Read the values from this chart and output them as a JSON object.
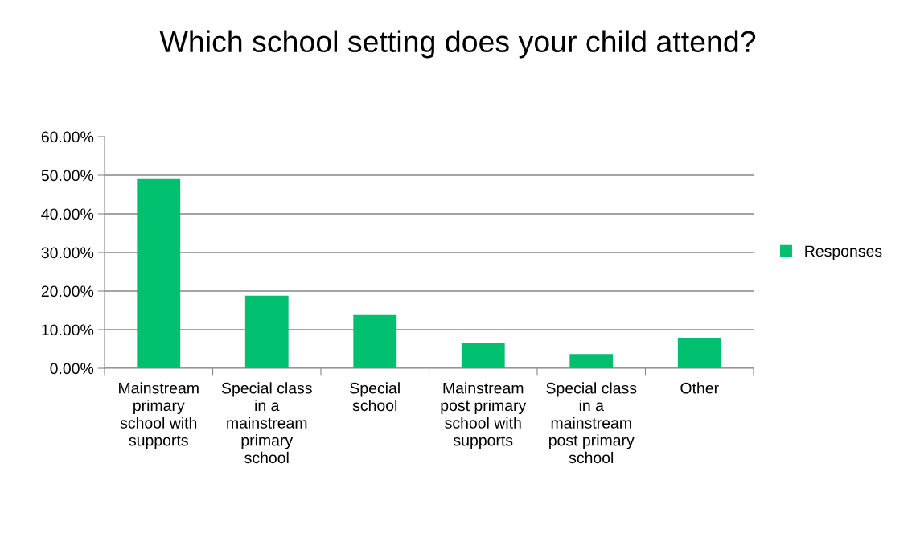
{
  "chart_data": {
    "type": "bar",
    "title": "Which school setting does your child attend?",
    "categories": [
      "Mainstream primary school with supports",
      "Special class in a mainstream primary school",
      "Special school",
      "Mainstream post primary school with supports",
      "Special class in a mainstream post primary school",
      "Other"
    ],
    "series": [
      {
        "name": "Responses",
        "color": "#00bf6f",
        "values": [
          49.2,
          18.8,
          13.8,
          6.5,
          3.7,
          7.9
        ]
      }
    ],
    "ylim": [
      0,
      60
    ],
    "yticks": [
      {
        "value": 0,
        "label": "0.00%"
      },
      {
        "value": 10,
        "label": "10.00%"
      },
      {
        "value": 20,
        "label": "20.00%"
      },
      {
        "value": 30,
        "label": "30.00%"
      },
      {
        "value": 40,
        "label": "40.00%"
      },
      {
        "value": 50,
        "label": "50.00%"
      },
      {
        "value": 60,
        "label": "60.00%"
      }
    ],
    "grid": "y",
    "legend": "right"
  }
}
